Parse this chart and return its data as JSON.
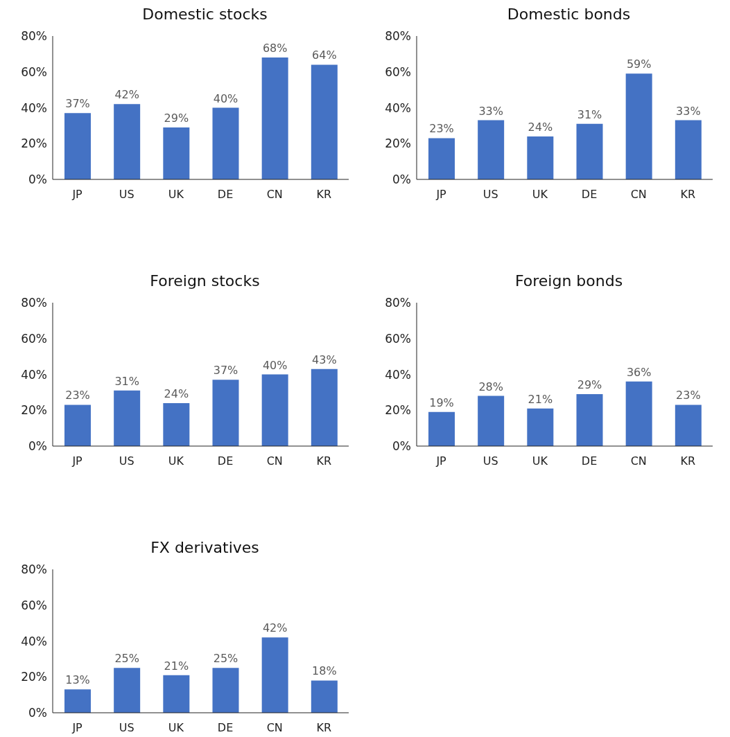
{
  "chart_data": [
    {
      "type": "bar",
      "title": "Domestic stocks",
      "categories": [
        "JP",
        "US",
        "UK",
        "DE",
        "CN",
        "KR"
      ],
      "values": [
        37,
        42,
        29,
        40,
        68,
        64
      ],
      "value_labels": [
        "37%",
        "42%",
        "29%",
        "40%",
        "68%",
        "64%"
      ],
      "color": "#4472c4",
      "ylim": [
        0,
        80
      ],
      "yticks": [
        {
          "value": 0,
          "label": "0%"
        },
        {
          "value": 20,
          "label": "20%"
        },
        {
          "value": 40,
          "label": "40%"
        },
        {
          "value": 60,
          "label": "60%"
        },
        {
          "value": 80,
          "label": "80%"
        }
      ]
    },
    {
      "type": "bar",
      "title": "Domestic bonds",
      "categories": [
        "JP",
        "US",
        "UK",
        "DE",
        "CN",
        "KR"
      ],
      "values": [
        23,
        33,
        24,
        31,
        59,
        33
      ],
      "value_labels": [
        "23%",
        "33%",
        "24%",
        "31%",
        "59%",
        "33%"
      ],
      "color": "#4472c4",
      "ylim": [
        0,
        80
      ],
      "yticks": [
        {
          "value": 0,
          "label": "0%"
        },
        {
          "value": 20,
          "label": "20%"
        },
        {
          "value": 40,
          "label": "40%"
        },
        {
          "value": 60,
          "label": "60%"
        },
        {
          "value": 80,
          "label": "80%"
        }
      ]
    },
    {
      "type": "bar",
      "title": "Foreign stocks",
      "categories": [
        "JP",
        "US",
        "UK",
        "DE",
        "CN",
        "KR"
      ],
      "values": [
        23,
        31,
        24,
        37,
        40,
        43
      ],
      "value_labels": [
        "23%",
        "31%",
        "24%",
        "37%",
        "40%",
        "43%"
      ],
      "color": "#4472c4",
      "ylim": [
        0,
        80
      ],
      "yticks": [
        {
          "value": 0,
          "label": "0%"
        },
        {
          "value": 20,
          "label": "20%"
        },
        {
          "value": 40,
          "label": "40%"
        },
        {
          "value": 60,
          "label": "60%"
        },
        {
          "value": 80,
          "label": "80%"
        }
      ]
    },
    {
      "type": "bar",
      "title": "Foreign bonds",
      "categories": [
        "JP",
        "US",
        "UK",
        "DE",
        "CN",
        "KR"
      ],
      "values": [
        19,
        28,
        21,
        29,
        36,
        23
      ],
      "value_labels": [
        "19%",
        "28%",
        "21%",
        "29%",
        "36%",
        "23%"
      ],
      "color": "#4472c4",
      "ylim": [
        0,
        80
      ],
      "yticks": [
        {
          "value": 0,
          "label": "0%"
        },
        {
          "value": 20,
          "label": "20%"
        },
        {
          "value": 40,
          "label": "40%"
        },
        {
          "value": 60,
          "label": "60%"
        },
        {
          "value": 80,
          "label": "80%"
        }
      ]
    },
    {
      "type": "bar",
      "title": "FX derivatives",
      "categories": [
        "JP",
        "US",
        "UK",
        "DE",
        "CN",
        "KR"
      ],
      "values": [
        13,
        25,
        21,
        25,
        42,
        18
      ],
      "value_labels": [
        "13%",
        "25%",
        "21%",
        "25%",
        "42%",
        "18%"
      ],
      "color": "#4472c4",
      "ylim": [
        0,
        80
      ],
      "yticks": [
        {
          "value": 0,
          "label": "0%"
        },
        {
          "value": 20,
          "label": "20%"
        },
        {
          "value": 40,
          "label": "40%"
        },
        {
          "value": 60,
          "label": "60%"
        },
        {
          "value": 80,
          "label": "80%"
        }
      ]
    }
  ]
}
